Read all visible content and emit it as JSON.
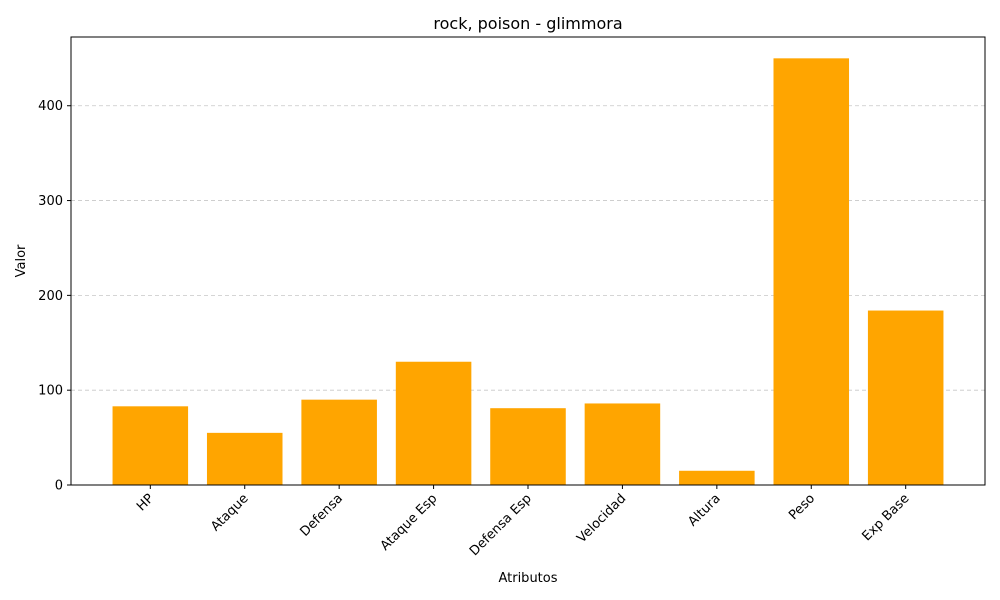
{
  "chart_data": {
    "type": "bar",
    "title": "rock, poison - glimmora",
    "xlabel": "Atributos",
    "ylabel": "Valor",
    "categories": [
      "HP",
      "Ataque",
      "Defensa",
      "Ataque Esp",
      "Defensa Esp",
      "Velocidad",
      "Altura",
      "Peso",
      "Exp Base"
    ],
    "values": [
      83,
      55,
      90,
      130,
      81,
      86,
      15,
      450,
      184
    ],
    "ylim": [
      0,
      472.5
    ],
    "yticks": [
      0,
      100,
      200,
      300,
      400
    ],
    "grid": "y-dashed",
    "bar_color": "#ffa500",
    "x_tick_rotation": 45
  }
}
